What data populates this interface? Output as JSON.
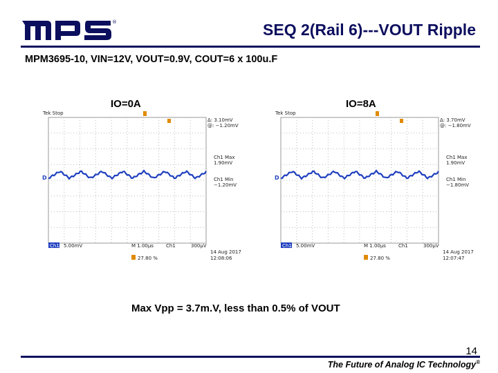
{
  "slide": {
    "logo_text": "MPS",
    "title": "SEQ 2(Rail 6)---VOUT Ripple",
    "subtitle": "MPM3695-10, VIN=12V, VOUT=0.9V, COUT=6 x 100u.F",
    "summary": "Max Vpp = 3.7m.V, less than 0.5% of VOUT",
    "page_number": "14",
    "footer": "The Future of Analog IC Technology",
    "footer_mark": "®"
  },
  "colors": {
    "brand_navy": "#0c0e5e",
    "trace_blue": "#1f3fbf",
    "cursor_orange": "#e08a00"
  },
  "scopes": [
    {
      "label": "IO=0A",
      "status": "Tek Stop",
      "delta_line": "Δ:  3.10mV",
      "at_line": "@: −1.20mV",
      "max_label": "Ch1 Max",
      "max_value": "1.90mV",
      "min_label": "Ch1 Min",
      "min_value": "−1.20mV",
      "ch_label": "Ch1",
      "ch_scale": "5.00mV",
      "timebase": "M 1.00µs",
      "trig_ch": "Ch1",
      "trig_level": "300µV",
      "date": "14 Aug 2017",
      "time": "12:08:06",
      "trig_pos": "27.80 %"
    },
    {
      "label": "IO=8A",
      "status": "Tek Stop",
      "delta_line": "Δ:  3.70mV",
      "at_line": "@: −1.80mV",
      "max_label": "Ch1 Max",
      "max_value": "1.90mV",
      "min_label": "Ch1 Min",
      "min_value": "−1.80mV",
      "ch_label": "Ch1",
      "ch_scale": "5.00mV",
      "timebase": "M 1.00µs",
      "trig_ch": "Ch1",
      "trig_level": "300µV",
      "date": "14 Aug 2017",
      "time": "12:07:47",
      "trig_pos": "27.80 %"
    }
  ]
}
